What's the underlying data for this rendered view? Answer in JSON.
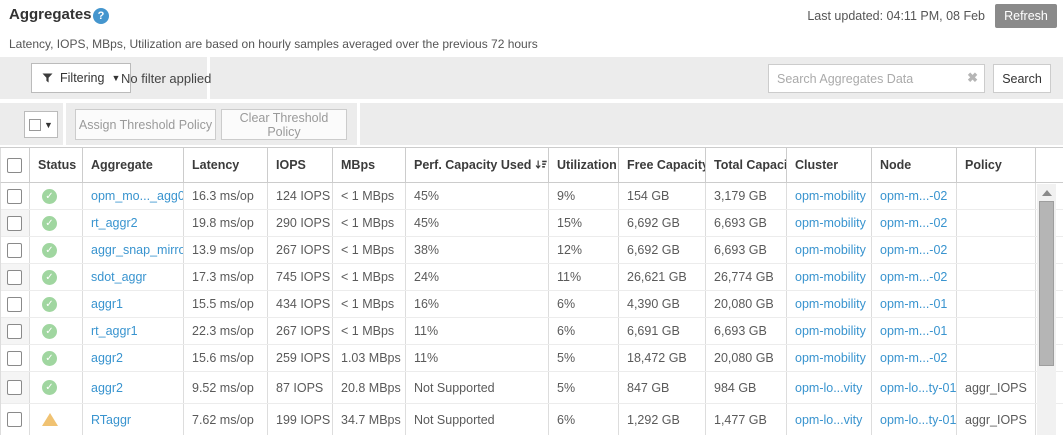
{
  "header": {
    "title": "Aggregates",
    "last_updated": "Last updated: 04:11 PM, 08 Feb",
    "refresh_label": "Refresh",
    "subtitle": "Latency, IOPS, MBps, Utilization are based on hourly samples averaged over the previous 72 hours"
  },
  "filter_bar": {
    "filtering_label": "Filtering",
    "filter_status": "No filter applied",
    "search_placeholder": "Search Aggregates Data",
    "search_button_label": "Search"
  },
  "toolbar": {
    "assign_label": "Assign Threshold Policy",
    "clear_label": "Clear Threshold Policy"
  },
  "table": {
    "columns": [
      "Status",
      "Aggregate",
      "Latency",
      "IOPS",
      "MBps",
      "Perf. Capacity Used",
      "Utilization",
      "Free Capacity",
      "Total Capacity",
      "Cluster",
      "Node",
      "Policy"
    ],
    "sorted_column": "Perf. Capacity Used",
    "sort_direction": "desc",
    "rows": [
      {
        "status": "ok",
        "aggregate": "opm_mo..._agg0",
        "latency": "16.3 ms/op",
        "iops": "124 IOPS",
        "mbps": "< 1 MBps",
        "perf": "45%",
        "util": "9%",
        "free": "154 GB",
        "total": "3,179 GB",
        "cluster": "opm-mobility",
        "node": "opm-m...-02",
        "policy": ""
      },
      {
        "status": "ok",
        "aggregate": "rt_aggr2",
        "latency": "19.8 ms/op",
        "iops": "290 IOPS",
        "mbps": "< 1 MBps",
        "perf": "45%",
        "util": "15%",
        "free": "6,692 GB",
        "total": "6,693 GB",
        "cluster": "opm-mobility",
        "node": "opm-m...-02",
        "policy": ""
      },
      {
        "status": "ok",
        "aggregate": "aggr_snap_mirror",
        "latency": "13.9 ms/op",
        "iops": "267 IOPS",
        "mbps": "< 1 MBps",
        "perf": "38%",
        "util": "12%",
        "free": "6,692 GB",
        "total": "6,693 GB",
        "cluster": "opm-mobility",
        "node": "opm-m...-02",
        "policy": ""
      },
      {
        "status": "ok",
        "aggregate": "sdot_aggr",
        "latency": "17.3 ms/op",
        "iops": "745 IOPS",
        "mbps": "< 1 MBps",
        "perf": "24%",
        "util": "11%",
        "free": "26,621 GB",
        "total": "26,774 GB",
        "cluster": "opm-mobility",
        "node": "opm-m...-02",
        "policy": ""
      },
      {
        "status": "ok",
        "aggregate": "aggr1",
        "latency": "15.5 ms/op",
        "iops": "434 IOPS",
        "mbps": "< 1 MBps",
        "perf": "16%",
        "util": "6%",
        "free": "4,390 GB",
        "total": "20,080 GB",
        "cluster": "opm-mobility",
        "node": "opm-m...-01",
        "policy": ""
      },
      {
        "status": "ok",
        "aggregate": "rt_aggr1",
        "latency": "22.3 ms/op",
        "iops": "267 IOPS",
        "mbps": "< 1 MBps",
        "perf": "11%",
        "util": "6%",
        "free": "6,691 GB",
        "total": "6,693 GB",
        "cluster": "opm-mobility",
        "node": "opm-m...-01",
        "policy": ""
      },
      {
        "status": "ok",
        "aggregate": "aggr2",
        "latency": "15.6 ms/op",
        "iops": "259 IOPS",
        "mbps": "1.03 MBps",
        "perf": "11%",
        "util": "5%",
        "free": "18,472 GB",
        "total": "20,080 GB",
        "cluster": "opm-mobility",
        "node": "opm-m...-02",
        "policy": ""
      },
      {
        "status": "ok",
        "aggregate": "aggr2",
        "latency": "9.52 ms/op",
        "iops": "87 IOPS",
        "mbps": "20.8 MBps",
        "perf": "Not Supported",
        "util": "5%",
        "free": "847 GB",
        "total": "984 GB",
        "cluster": "opm-lo...vity",
        "node": "opm-lo...ty-01",
        "policy": "aggr_IOPS"
      },
      {
        "status": "warning",
        "aggregate": "RTaggr",
        "latency": "7.62 ms/op",
        "iops": "199 IOPS",
        "mbps": "34.7 MBps",
        "perf": "Not Supported",
        "util": "6%",
        "free": "1,292 GB",
        "total": "1,477 GB",
        "cluster": "opm-lo...vity",
        "node": "opm-lo...ty-01",
        "policy": "aggr_IOPS"
      }
    ]
  },
  "colors": {
    "link": "#3994cf",
    "status_ok": "#a0d6a0",
    "status_warning": "#f0c272",
    "refresh_button_bg": "#8a8a8a",
    "help_icon_bg": "#4596ce"
  }
}
